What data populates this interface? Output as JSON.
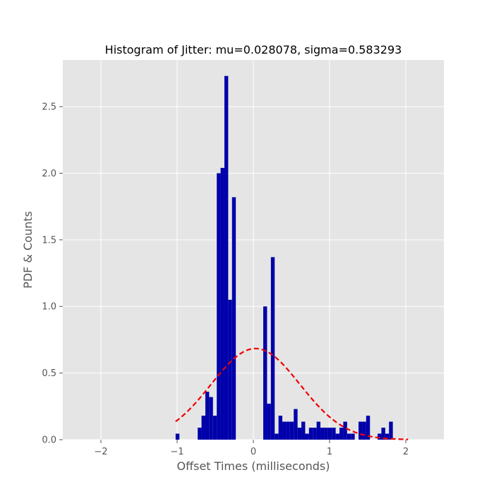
{
  "chart_data": {
    "type": "bar",
    "title": "Histogram of Jitter: mu=0.028078, sigma=0.583293",
    "xlabel": "Offset Times (milliseconds)",
    "ylabel": "PDF & Counts",
    "xlim": [
      -2.5,
      2.5
    ],
    "ylim": [
      0,
      2.85
    ],
    "grid": true,
    "xticks": [
      -2,
      -1,
      0,
      1,
      2
    ],
    "xtick_labels": [
      "−2",
      "−1",
      "0",
      "1",
      "2"
    ],
    "yticks": [
      0.0,
      0.5,
      1.0,
      1.5,
      2.0,
      2.5
    ],
    "ytick_labels": [
      "0.0",
      "0.5",
      "1.0",
      "1.5",
      "2.0",
      "2.5"
    ],
    "bin_width": 0.05,
    "bar_color": "#0000aa",
    "bars": [
      {
        "x": -1.02,
        "height": 0.045
      },
      {
        "x": -0.73,
        "height": 0.09
      },
      {
        "x": -0.68,
        "height": 0.18
      },
      {
        "x": -0.63,
        "height": 0.36
      },
      {
        "x": -0.58,
        "height": 0.32
      },
      {
        "x": -0.53,
        "height": 0.18
      },
      {
        "x": -0.48,
        "height": 2.0
      },
      {
        "x": -0.43,
        "height": 2.04
      },
      {
        "x": -0.38,
        "height": 2.73
      },
      {
        "x": -0.33,
        "height": 1.05
      },
      {
        "x": -0.28,
        "height": 1.82
      },
      {
        "x": 0.13,
        "height": 1.0
      },
      {
        "x": 0.18,
        "height": 0.27
      },
      {
        "x": 0.23,
        "height": 1.37
      },
      {
        "x": 0.28,
        "height": 0.045
      },
      {
        "x": 0.33,
        "height": 0.18
      },
      {
        "x": 0.38,
        "height": 0.135
      },
      {
        "x": 0.43,
        "height": 0.135
      },
      {
        "x": 0.48,
        "height": 0.135
      },
      {
        "x": 0.53,
        "height": 0.23
      },
      {
        "x": 0.58,
        "height": 0.09
      },
      {
        "x": 0.63,
        "height": 0.135
      },
      {
        "x": 0.68,
        "height": 0.045
      },
      {
        "x": 0.73,
        "height": 0.09
      },
      {
        "x": 0.78,
        "height": 0.09
      },
      {
        "x": 0.83,
        "height": 0.135
      },
      {
        "x": 0.88,
        "height": 0.09
      },
      {
        "x": 0.93,
        "height": 0.09
      },
      {
        "x": 0.98,
        "height": 0.09
      },
      {
        "x": 1.03,
        "height": 0.09
      },
      {
        "x": 1.08,
        "height": 0.045
      },
      {
        "x": 1.13,
        "height": 0.09
      },
      {
        "x": 1.18,
        "height": 0.135
      },
      {
        "x": 1.23,
        "height": 0.045
      },
      {
        "x": 1.28,
        "height": 0.045
      },
      {
        "x": 1.38,
        "height": 0.135
      },
      {
        "x": 1.43,
        "height": 0.135
      },
      {
        "x": 1.48,
        "height": 0.18
      },
      {
        "x": 1.63,
        "height": 0.045
      },
      {
        "x": 1.68,
        "height": 0.09
      },
      {
        "x": 1.73,
        "height": 0.045
      },
      {
        "x": 1.78,
        "height": 0.135
      }
    ],
    "pdf_curve": {
      "mu": 0.028078,
      "sigma": 0.583293,
      "x_range": [
        -1.02,
        2.03
      ],
      "color": "#ee0000",
      "style": "dashed"
    }
  }
}
